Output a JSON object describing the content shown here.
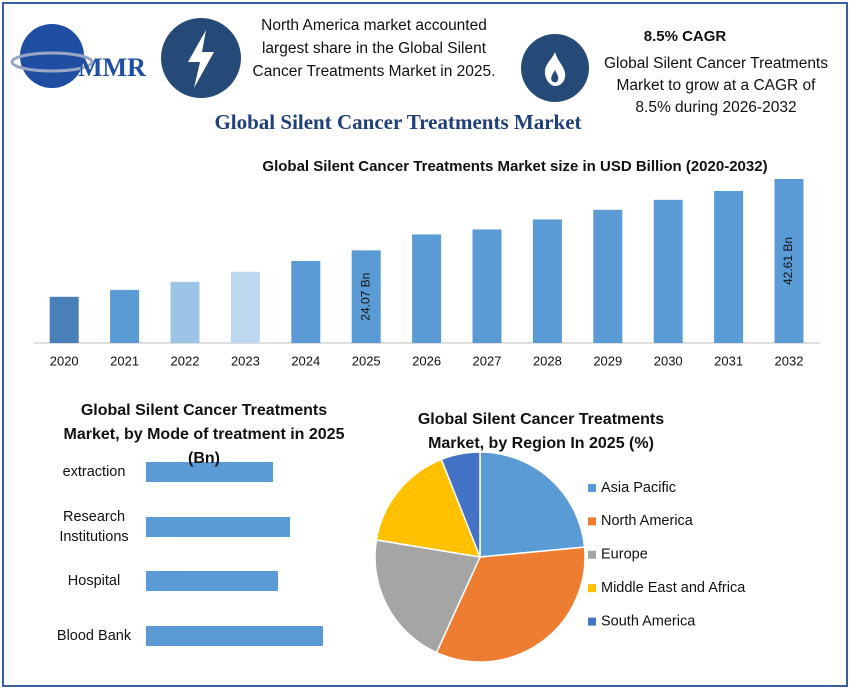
{
  "header": {
    "logo": "MMR",
    "share_note": "North America market accounted largest share in the Global Silent Cancer Treatments Market in 2025.",
    "cagr_title": "8.5% CAGR",
    "cagr_note": "Global Silent Cancer Treatments Market to grow at a CAGR of 8.5% during 2026-2032",
    "main_title": "Global Silent Cancer Treatments Market"
  },
  "chart_data": [
    {
      "type": "bar",
      "title": "Global Silent Cancer Treatments Market size in USD Billion (2020-2032)",
      "categories": [
        "2020",
        "2021",
        "2022",
        "2023",
        "2024",
        "2025",
        "2026",
        "2027",
        "2028",
        "2029",
        "2030",
        "2031",
        "2032"
      ],
      "values": [
        12.0,
        13.8,
        15.9,
        18.5,
        21.3,
        24.07,
        28.2,
        29.5,
        32.1,
        34.6,
        37.2,
        39.5,
        42.61
      ],
      "value_labels": [
        null,
        null,
        null,
        null,
        null,
        "24.07 Bn",
        null,
        null,
        null,
        null,
        null,
        null,
        "42.61 Bn"
      ],
      "colors": [
        "#4a80b8",
        "#5b9bd5",
        "#9dc3e6",
        "#bdd7ee",
        "#5b9bd5",
        "#5b9bd5",
        "#5b9bd5",
        "#5b9bd5",
        "#5b9bd5",
        "#5b9bd5",
        "#5b9bd5",
        "#5b9bd5",
        "#5b9bd5"
      ]
    },
    {
      "type": "barh",
      "title": "Global Silent Cancer Treatments Market, by Mode of treatment in 2025 (Bn)",
      "categories": [
        "extraction",
        "Research Institutions",
        "Hospital",
        "Blood Bank"
      ],
      "values": [
        1.27,
        1.44,
        1.32,
        1.77
      ],
      "color": "#5b9bd5"
    },
    {
      "type": "pie",
      "title": "Global Silent Cancer Treatments Market, by Region In 2025 (%)",
      "categories": [
        "Asia Pacific",
        "North America",
        "Europe",
        "Middle East and Africa",
        "South America"
      ],
      "values": [
        23.5,
        33.3,
        20.8,
        16.4,
        6.0
      ],
      "colors": [
        "#5b9bd5",
        "#ed7d31",
        "#a5a5a5",
        "#ffc000",
        "#4472c4"
      ]
    }
  ]
}
